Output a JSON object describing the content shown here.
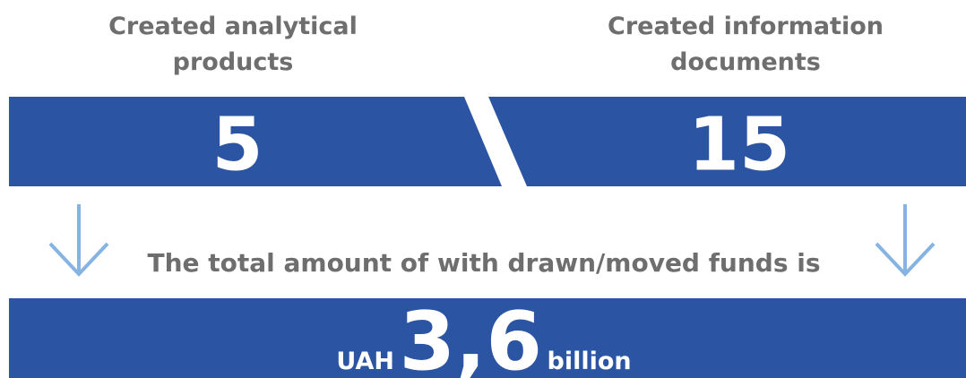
{
  "left": {
    "title_lines": [
      "Created analytical",
      "products"
    ],
    "value": 5
  },
  "right": {
    "title_lines": [
      "Created information",
      "documents"
    ],
    "value": 15
  },
  "total": {
    "caption": "The total amount of with drawn/moved funds is",
    "currency": "UAH",
    "amount": "3,6",
    "unit": "billion"
  }
}
